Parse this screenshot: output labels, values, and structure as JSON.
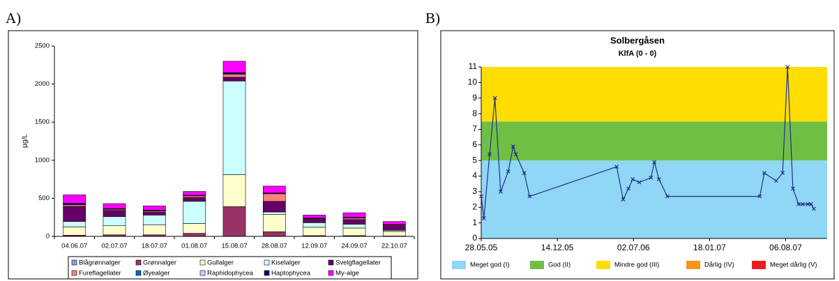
{
  "chart_data": [
    {
      "type": "bar",
      "stacked": true,
      "panel": "A)",
      "ylabel": "µg/L",
      "categories": [
        "04.06.07",
        "02.07.07",
        "18.07.07",
        "01.08.07",
        "15.08.07",
        "28.08.07",
        "12.09.07",
        "24.09.07",
        "22.10.07"
      ],
      "series": [
        {
          "name": "Blågrønnalger",
          "color": "#9999ff",
          "values": [
            0,
            0,
            0,
            0,
            0,
            0,
            0,
            0,
            0
          ]
        },
        {
          "name": "Grønnalger",
          "color": "#993366",
          "values": [
            15,
            20,
            20,
            40,
            390,
            60,
            10,
            10,
            5
          ]
        },
        {
          "name": "Gullalger",
          "color": "#ffffcc",
          "values": [
            110,
            120,
            130,
            130,
            420,
            230,
            110,
            100,
            60
          ]
        },
        {
          "name": "Kiselalger",
          "color": "#ccffff",
          "values": [
            70,
            120,
            130,
            290,
            1230,
            30,
            60,
            50,
            15
          ]
        },
        {
          "name": "Svelgflagellater",
          "color": "#660066",
          "values": [
            200,
            80,
            40,
            50,
            50,
            140,
            40,
            60,
            60
          ]
        },
        {
          "name": "Fureflagellater",
          "color": "#ff8080",
          "values": [
            20,
            15,
            15,
            20,
            40,
            100,
            10,
            20,
            10
          ]
        },
        {
          "name": "Øyealger",
          "color": "#0066cc",
          "values": [
            0,
            0,
            0,
            0,
            0,
            0,
            0,
            0,
            0
          ]
        },
        {
          "name": "Raphidophycea",
          "color": "#ccccff",
          "values": [
            0,
            0,
            0,
            0,
            0,
            0,
            0,
            0,
            0
          ]
        },
        {
          "name": "Haptophycea",
          "color": "#000080",
          "values": [
            20,
            10,
            10,
            10,
            20,
            10,
            10,
            10,
            5
          ]
        },
        {
          "name": "My-alge",
          "color": "#ff00ff",
          "values": [
            110,
            65,
            55,
            50,
            150,
            90,
            40,
            60,
            40
          ]
        }
      ],
      "ylim": [
        0,
        2500
      ],
      "yticks": [
        0,
        500,
        1000,
        1500,
        2000,
        2500
      ],
      "grid": false
    },
    {
      "type": "line",
      "panel": "B)",
      "title": "Solbergåsen",
      "subtitle": "KlfA (0 - 0)",
      "x": [
        "2005-05-28",
        "2005-06-04",
        "2005-06-19",
        "2005-07-03",
        "2005-07-18",
        "2005-08-07",
        "2005-08-20",
        "2005-08-27",
        "2005-09-18",
        "2005-10-02",
        "2006-05-19",
        "2006-06-05",
        "2006-06-19",
        "2006-06-30",
        "2006-07-17",
        "2006-08-17",
        "2006-08-26",
        "2006-09-07",
        "2006-09-29",
        "2007-05-30",
        "2007-06-11",
        "2007-07-12",
        "2007-07-29",
        "2007-08-11",
        "2007-08-25",
        "2007-09-09",
        "2007-09-20",
        "2007-10-03",
        "2007-10-12",
        "2007-10-19"
      ],
      "values": [
        2.7,
        1.3,
        5.4,
        9.0,
        3.0,
        4.3,
        5.9,
        5.4,
        4.2,
        2.7,
        4.6,
        2.5,
        3.2,
        3.8,
        3.6,
        3.9,
        4.9,
        3.8,
        2.7,
        2.7,
        4.2,
        3.7,
        4.2,
        11.0,
        3.2,
        2.2,
        2.2,
        2.2,
        2.2,
        1.9
      ],
      "color": "#1f2d8c",
      "xlim": [
        "2005-05-28",
        "2007-11-23"
      ],
      "xticks": [
        {
          "value": "2005-05-28",
          "label": "28.05.05"
        },
        {
          "value": "2005-12-14",
          "label": "14.12.05"
        },
        {
          "value": "2006-07-02",
          "label": "02.07.06"
        },
        {
          "value": "2007-01-18",
          "label": "18.01.07"
        },
        {
          "value": "2007-08-06",
          "label": "06.08.07"
        }
      ],
      "ylim": [
        0,
        11
      ],
      "yticks": [
        0,
        1,
        2,
        3,
        4,
        5,
        6,
        7,
        8,
        9,
        10,
        11
      ],
      "classes": [
        {
          "name": "Meget god (I)",
          "color": "#8fd7f5",
          "range": [
            0,
            5
          ]
        },
        {
          "name": "God (II)",
          "color": "#70bf44",
          "range": [
            5,
            7.5
          ]
        },
        {
          "name": "Mindre god (III)",
          "color": "#ffdd00",
          "range": [
            7.5,
            11
          ]
        },
        {
          "name": "Dårlig (IV)",
          "color": "#f7941d"
        },
        {
          "name": "Meget dårlig (V)",
          "color": "#ed1c24"
        }
      ]
    }
  ]
}
